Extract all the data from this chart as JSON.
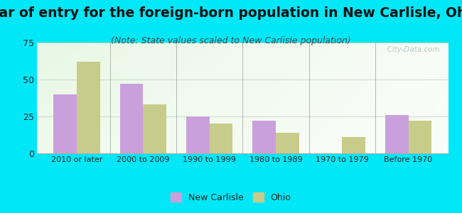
{
  "title": "Year of entry for the foreign-born population in New Carlisle, Ohio",
  "subtitle": "(Note: State values scaled to New Carlisle population)",
  "categories": [
    "2010 or later",
    "2000 to 2009",
    "1990 to 1999",
    "1980 to 1989",
    "1970 to 1979",
    "Before 1970"
  ],
  "new_carlisle": [
    40,
    47,
    25,
    22,
    0,
    26
  ],
  "ohio": [
    62,
    33,
    20,
    14,
    11,
    22
  ],
  "nc_color": "#c9a0dc",
  "ohio_color": "#c8cc8a",
  "bg_outer": "#00e8f8",
  "ylim": [
    0,
    75
  ],
  "yticks": [
    0,
    25,
    50,
    75
  ],
  "title_fontsize": 13.5,
  "subtitle_fontsize": 9,
  "legend_label_nc": "New Carlisle",
  "legend_label_ohio": "Ohio",
  "watermark": "  City-Data.com"
}
